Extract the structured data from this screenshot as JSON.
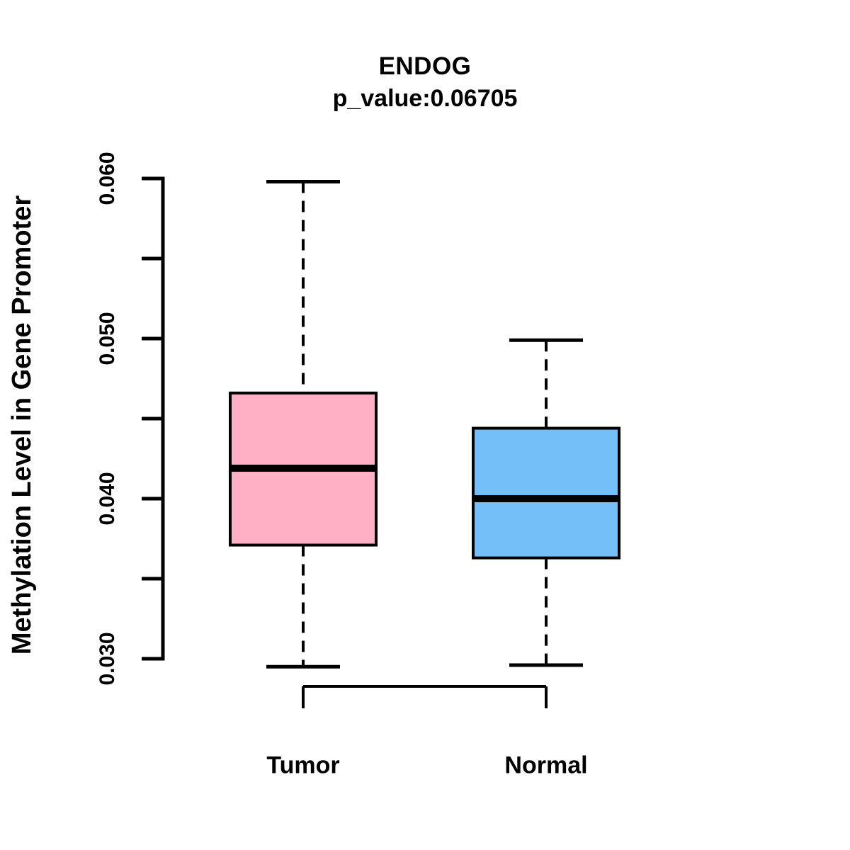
{
  "title": "ENDOG",
  "subtitle": "p_value:0.06705",
  "chart_data": {
    "type": "boxplot",
    "title": "ENDOG",
    "subtitle": "p_value:0.06705",
    "xlabel": "",
    "ylabel": "Methylation Level in Gene Promoter",
    "categories": [
      "Tumor",
      "Normal"
    ],
    "ylim": [
      0.03,
      0.06
    ],
    "y_ticks": [
      0.03,
      0.035,
      0.04,
      0.045,
      0.05,
      0.055,
      0.06
    ],
    "y_tick_labels": [
      "0.030",
      "0.040",
      "0.050",
      "0.060"
    ],
    "y_tick_label_values": [
      0.03,
      0.04,
      0.05,
      0.06
    ],
    "grid": "off",
    "legend": "none",
    "series": [
      {
        "name": "Tumor",
        "fill_color": "#FFB0C5",
        "min": 0.0295,
        "q1": 0.0371,
        "median": 0.0419,
        "q3": 0.0466,
        "max": 0.0598,
        "outliers": []
      },
      {
        "name": "Normal",
        "fill_color": "#74BFF8",
        "min": 0.0296,
        "q1": 0.0363,
        "median": 0.04,
        "q3": 0.0444,
        "max": 0.0499,
        "outliers": []
      }
    ],
    "stroke_color": "#000000",
    "background_color": "#FFFFFF"
  }
}
